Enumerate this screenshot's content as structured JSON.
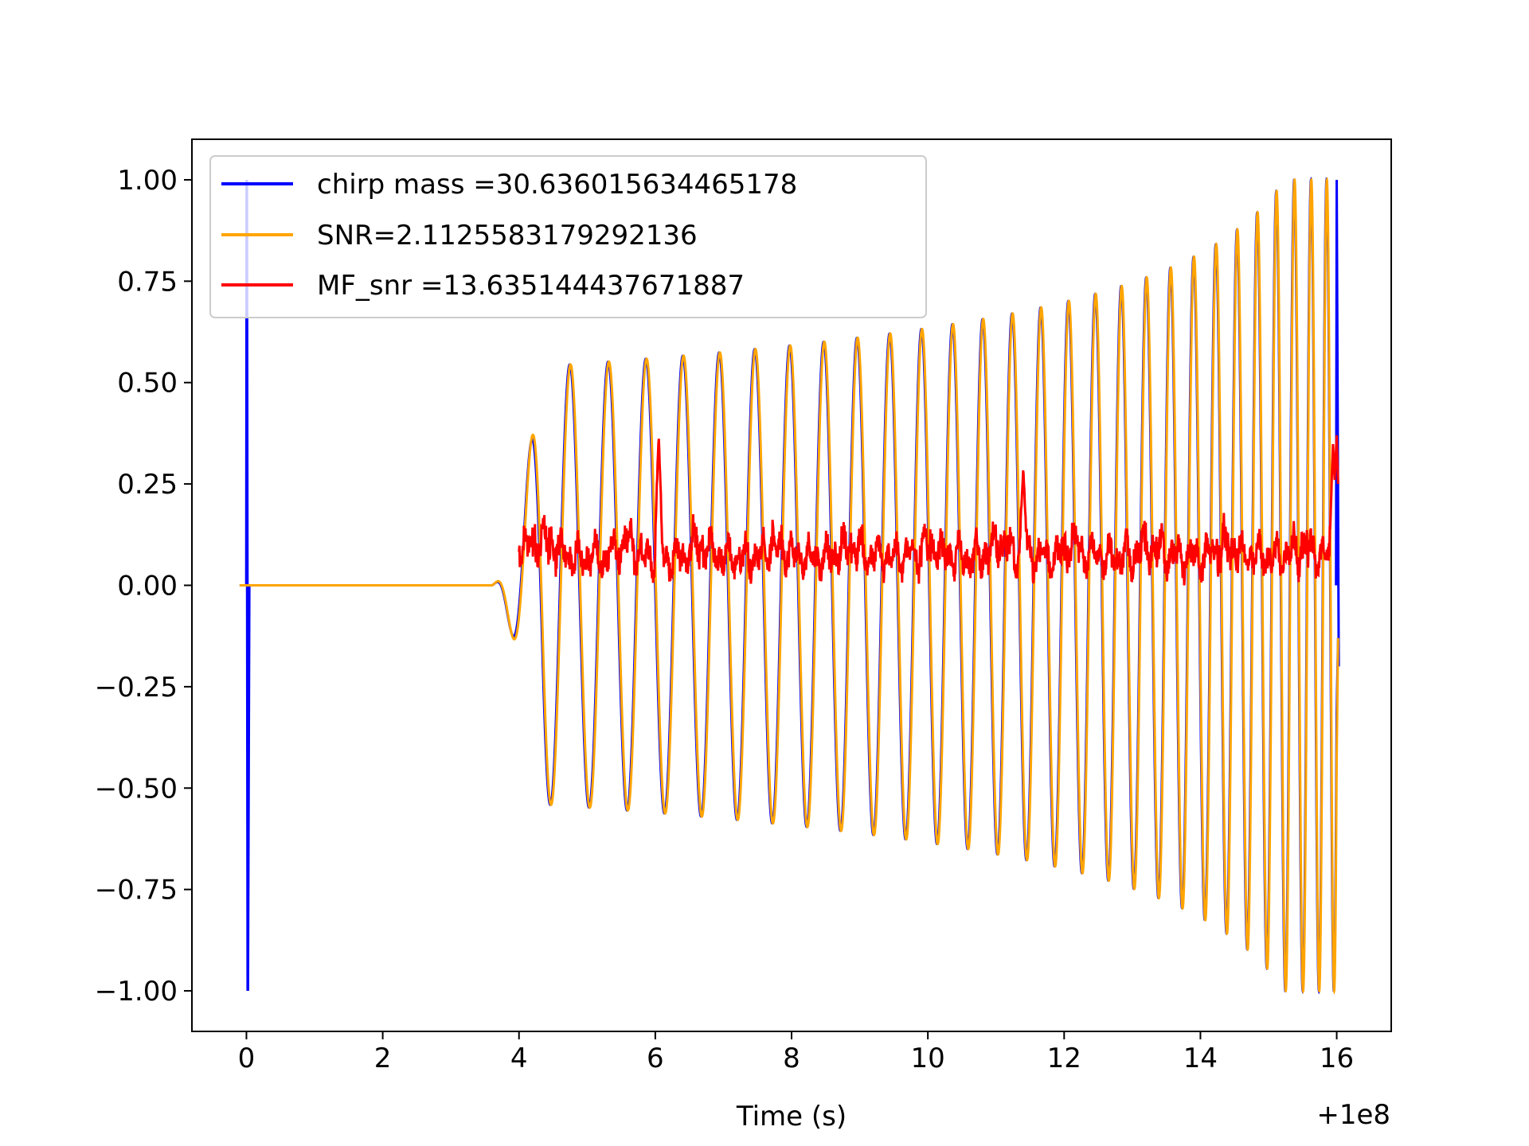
{
  "chart_data": {
    "type": "line",
    "title": "",
    "xlabel": "Time (s)",
    "ylabel": "",
    "x_offset_label": "+1e8",
    "xlim": [
      -0.8,
      16.8
    ],
    "ylim": [
      -1.1,
      1.1
    ],
    "xticks": [
      0,
      2,
      4,
      6,
      8,
      10,
      12,
      14,
      16
    ],
    "xtick_labels": [
      "0",
      "2",
      "4",
      "6",
      "8",
      "10",
      "12",
      "14",
      "16"
    ],
    "yticks": [
      1.0,
      0.75,
      0.5,
      0.25,
      0.0,
      -0.25,
      -0.5,
      -0.75,
      -1.0
    ],
    "ytick_labels": [
      "1.00",
      "0.75",
      "0.50",
      "0.25",
      "0.00",
      "−0.25",
      "−0.50",
      "−0.75",
      "−1.00"
    ],
    "grid": false,
    "legend_position": "top-left",
    "series": [
      {
        "name": "chirp mass =30.636015634465178",
        "color": "#0000ff",
        "description_points": {
          "spike_at": 0.02,
          "spike_range": [
            -1.0,
            1.0
          ],
          "chirp_start": 3.6,
          "amplitude_plateau_start": 4.35,
          "amplitude_at_4_4": 0.54,
          "amplitude_at_12": 0.67,
          "amplitude_at_15": 0.82,
          "amplitude_at_16": 1.0
        }
      },
      {
        "name": "SNR=2.1125583179292136",
        "color": "#ffa500",
        "description_points": {
          "chirp_start": 3.6,
          "amplitude_at_4_4": 0.54,
          "amplitude_at_12": 0.67,
          "amplitude_at_15": 0.82,
          "amplitude_at_16": 1.0
        }
      },
      {
        "name": "MF_snr =13.635144437671887",
        "color": "#ff0000",
        "description_points": {
          "start": 4.0,
          "end": 15.95,
          "typical_range": [
            0.0,
            0.2
          ],
          "peaks": [
            [
              6.05,
              0.37
            ],
            [
              11.4,
              0.29
            ],
            [
              15.95,
              0.37
            ]
          ]
        }
      }
    ]
  }
}
